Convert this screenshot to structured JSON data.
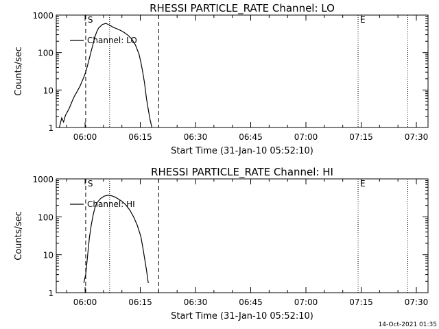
{
  "timestamp": "14-Oct-2021 01:35",
  "chart_data": [
    {
      "type": "line",
      "title": "RHESSI PARTICLE_RATE Channel: LO",
      "xlabel": "Start Time (31-Jan-10 05:52:10)",
      "ylabel": "Counts/sec",
      "yscale": "log",
      "ylim": [
        1,
        1000
      ],
      "xlim": [
        "05:52:10",
        "07:33:10"
      ],
      "x_ticks": [
        "06:00",
        "06:15",
        "06:30",
        "06:45",
        "07:00",
        "07:15",
        "07:30"
      ],
      "y_ticks": [
        "1",
        "10",
        "100",
        "1000"
      ],
      "legend": {
        "label": "Channel: LO",
        "position": "top-left"
      },
      "markers": [
        {
          "time": "06:00:10",
          "label": "S",
          "style": "dashed"
        },
        {
          "time": "06:06:40",
          "label": "",
          "style": "dotted"
        },
        {
          "time": "06:20:00",
          "label": "",
          "style": "dashed"
        },
        {
          "time": "07:14:10",
          "label": "E",
          "style": "dotted"
        },
        {
          "time": "07:27:40",
          "label": "",
          "style": "dotted"
        }
      ],
      "series": [
        {
          "x": [
            "05:53:00",
            "05:53:40",
            "05:54:10",
            "05:54:40",
            "05:55:10",
            "05:55:40",
            "05:56:10",
            "05:56:40",
            "05:57:10",
            "05:57:40",
            "05:58:10",
            "05:58:40",
            "05:59:10",
            "05:59:40",
            "06:00:10",
            "06:00:40",
            "06:01:10",
            "06:01:40",
            "06:02:10",
            "06:02:40",
            "06:03:10",
            "06:03:40",
            "06:04:40",
            "06:05:40",
            "06:06:40",
            "06:07:40",
            "06:08:40",
            "06:09:40",
            "06:10:40",
            "06:11:40",
            "06:12:40",
            "06:13:40",
            "06:14:40",
            "06:15:10",
            "06:15:40",
            "06:16:10",
            "06:16:40",
            "06:17:10",
            "06:17:40",
            "06:18:10"
          ],
          "y": [
            1.0,
            1.8,
            1.4,
            2.1,
            2.6,
            3.2,
            4.2,
            5.5,
            7.0,
            8.5,
            10.5,
            13,
            17,
            22,
            30,
            45,
            70,
            110,
            170,
            260,
            360,
            450,
            560,
            600,
            540,
            470,
            430,
            390,
            340,
            290,
            230,
            160,
            90,
            55,
            30,
            15,
            6,
            3,
            1.6,
            1.0
          ]
        }
      ]
    },
    {
      "type": "line",
      "title": "RHESSI PARTICLE_RATE Channel: HI",
      "xlabel": "Start Time (31-Jan-10 05:52:10)",
      "ylabel": "Counts/sec",
      "yscale": "log",
      "ylim": [
        1,
        1000
      ],
      "xlim": [
        "05:52:10",
        "07:33:10"
      ],
      "x_ticks": [
        "06:00",
        "06:15",
        "06:30",
        "06:45",
        "07:00",
        "07:15",
        "07:30"
      ],
      "y_ticks": [
        "1",
        "10",
        "100",
        "1000"
      ],
      "legend": {
        "label": "Channel: HI",
        "position": "top-left"
      },
      "markers": [
        {
          "time": "06:00:10",
          "label": "S",
          "style": "dashed"
        },
        {
          "time": "06:06:40",
          "label": "",
          "style": "dotted"
        },
        {
          "time": "06:20:00",
          "label": "",
          "style": "dashed"
        },
        {
          "time": "07:14:10",
          "label": "E",
          "style": "dotted"
        },
        {
          "time": "07:27:40",
          "label": "",
          "style": "dotted"
        }
      ],
      "series": [
        {
          "x": [
            "05:59:40",
            "06:00:10",
            "06:00:40",
            "06:01:10",
            "06:01:40",
            "06:02:10",
            "06:02:40",
            "06:03:10",
            "06:04:10",
            "06:05:10",
            "06:06:10",
            "06:07:10",
            "06:08:10",
            "06:09:10",
            "06:10:10",
            "06:11:10",
            "06:12:10",
            "06:13:10",
            "06:14:10",
            "06:15:10",
            "06:15:40",
            "06:16:10",
            "06:16:40",
            "06:17:10"
          ],
          "y": [
            1.8,
            3.0,
            9,
            28,
            60,
            110,
            170,
            230,
            300,
            350,
            370,
            360,
            330,
            290,
            250,
            200,
            150,
            100,
            60,
            30,
            16,
            8,
            4,
            1.8
          ]
        }
      ]
    }
  ]
}
